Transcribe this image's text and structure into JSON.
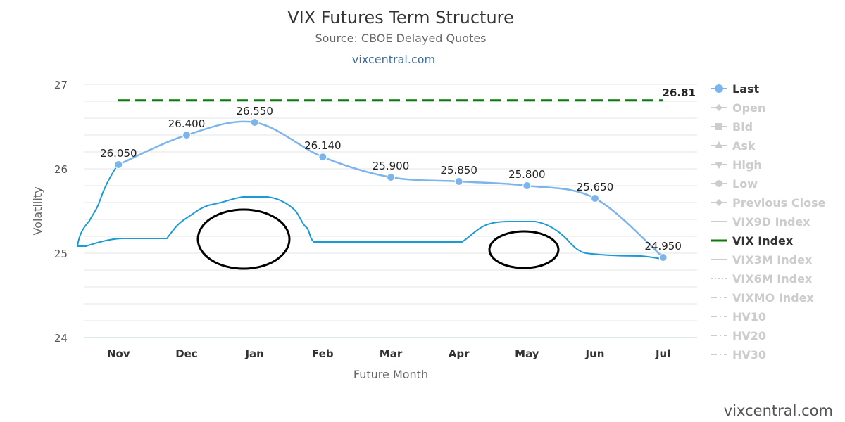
{
  "chart_data": {
    "type": "line",
    "title": "VIX Futures Term Structure",
    "subtitle": "Source: CBOE Delayed Quotes",
    "credit_top": "vixcentral.com",
    "credit_bottom": "vixcentral.com",
    "xlabel": "Future Month",
    "ylabel": "Volatility",
    "categories": [
      "Nov",
      "Dec",
      "Jan",
      "Feb",
      "Mar",
      "Apr",
      "May",
      "Jun",
      "Jul"
    ],
    "yticks": [
      "24",
      "25",
      "26",
      "27"
    ],
    "ylim": [
      24,
      27
    ],
    "grid": true,
    "legend_position": "right",
    "series": [
      {
        "name": "Last",
        "color": "#7cb5ec",
        "values": [
          26.05,
          26.4,
          26.55,
          26.14,
          25.9,
          25.85,
          25.8,
          25.65,
          24.95
        ],
        "labels": [
          "26.050",
          "26.400",
          "26.550",
          "26.140",
          "25.900",
          "25.850",
          "25.800",
          "25.650",
          "24.950"
        ]
      },
      {
        "name": "VIX Index",
        "color": "#0a7a0a",
        "style": "dashed",
        "value": 26.81,
        "label": "26.81"
      }
    ],
    "legend": [
      {
        "name": "Last",
        "active": true,
        "symbol": "circle-line"
      },
      {
        "name": "Open",
        "active": false,
        "symbol": "diamond-line"
      },
      {
        "name": "Bid",
        "active": false,
        "symbol": "square-line"
      },
      {
        "name": "Ask",
        "active": false,
        "symbol": "triangle-line"
      },
      {
        "name": "High",
        "active": false,
        "symbol": "triangle-down-line"
      },
      {
        "name": "Low",
        "active": false,
        "symbol": "circle-line"
      },
      {
        "name": "Previous Close",
        "active": false,
        "symbol": "diamond-line"
      },
      {
        "name": "VIX9D Index",
        "active": false,
        "symbol": "solid"
      },
      {
        "name": "VIX Index",
        "active": true,
        "symbol": "solid-green"
      },
      {
        "name": "VIX3M Index",
        "active": false,
        "symbol": "solid"
      },
      {
        "name": "VIX6M Index",
        "active": false,
        "symbol": "dotted"
      },
      {
        "name": "VIXMO Index",
        "active": false,
        "symbol": "dashdot"
      },
      {
        "name": "HV10",
        "active": false,
        "symbol": "dashdot"
      },
      {
        "name": "HV20",
        "active": false,
        "symbol": "dashdot"
      },
      {
        "name": "HV30",
        "active": false,
        "symbol": "dashdot"
      }
    ],
    "annotation_car": {
      "color": "#1a9ad6",
      "wheel_color": "#000000"
    }
  }
}
